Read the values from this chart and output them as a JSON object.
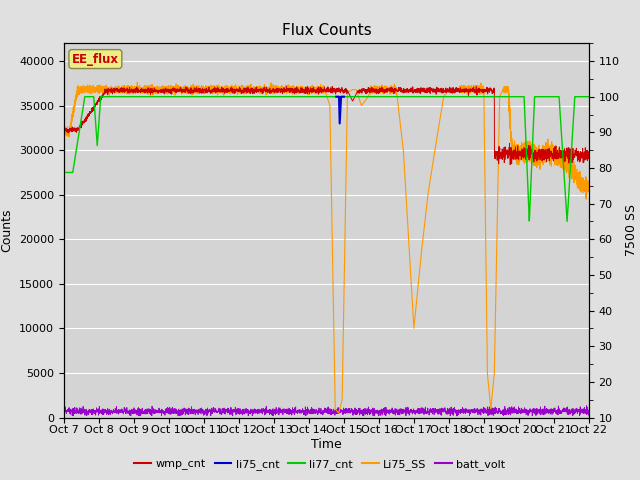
{
  "title": "Flux Counts",
  "xlabel": "Time",
  "ylabel_left": "Counts",
  "ylabel_right": "7500 SS",
  "x_ticks": [
    "Oct 7",
    "Oct 8",
    "Oct 9",
    "Oct 10",
    "Oct 11",
    "Oct 12",
    "Oct 13",
    "Oct 14",
    "Oct 15",
    "Oct 16",
    "Oct 17",
    "Oct 18",
    "Oct 19",
    "Oct 20",
    "Oct 21",
    "Oct 22"
  ],
  "ylim_left": [
    0,
    42000
  ],
  "ylim_right": [
    10,
    115
  ],
  "yticks_left": [
    0,
    5000,
    10000,
    15000,
    20000,
    25000,
    30000,
    35000,
    40000
  ],
  "yticks_right": [
    10,
    20,
    30,
    40,
    50,
    60,
    70,
    80,
    90,
    100,
    110
  ],
  "background_color": "#e0e0e0",
  "plot_bg_color": "#d4d4d4",
  "legend_colors": [
    "#cc0000",
    "#0000cc",
    "#00cc00",
    "#ff9900",
    "#9900cc"
  ],
  "ee_flux_box_facecolor": "#eeee88",
  "ee_flux_box_edgecolor": "#888844",
  "ee_flux_text": "EE_flux",
  "ee_flux_text_color": "#cc0000",
  "title_fontsize": 11,
  "label_fontsize": 9,
  "tick_fontsize": 8,
  "legend_fontsize": 8,
  "wmp_color": "#cc0000",
  "li75_color": "#0000cc",
  "li77_color": "#00cc00",
  "li75ss_color": "#ff9900",
  "batt_color": "#9900cc",
  "grid_color": "#ffffff"
}
